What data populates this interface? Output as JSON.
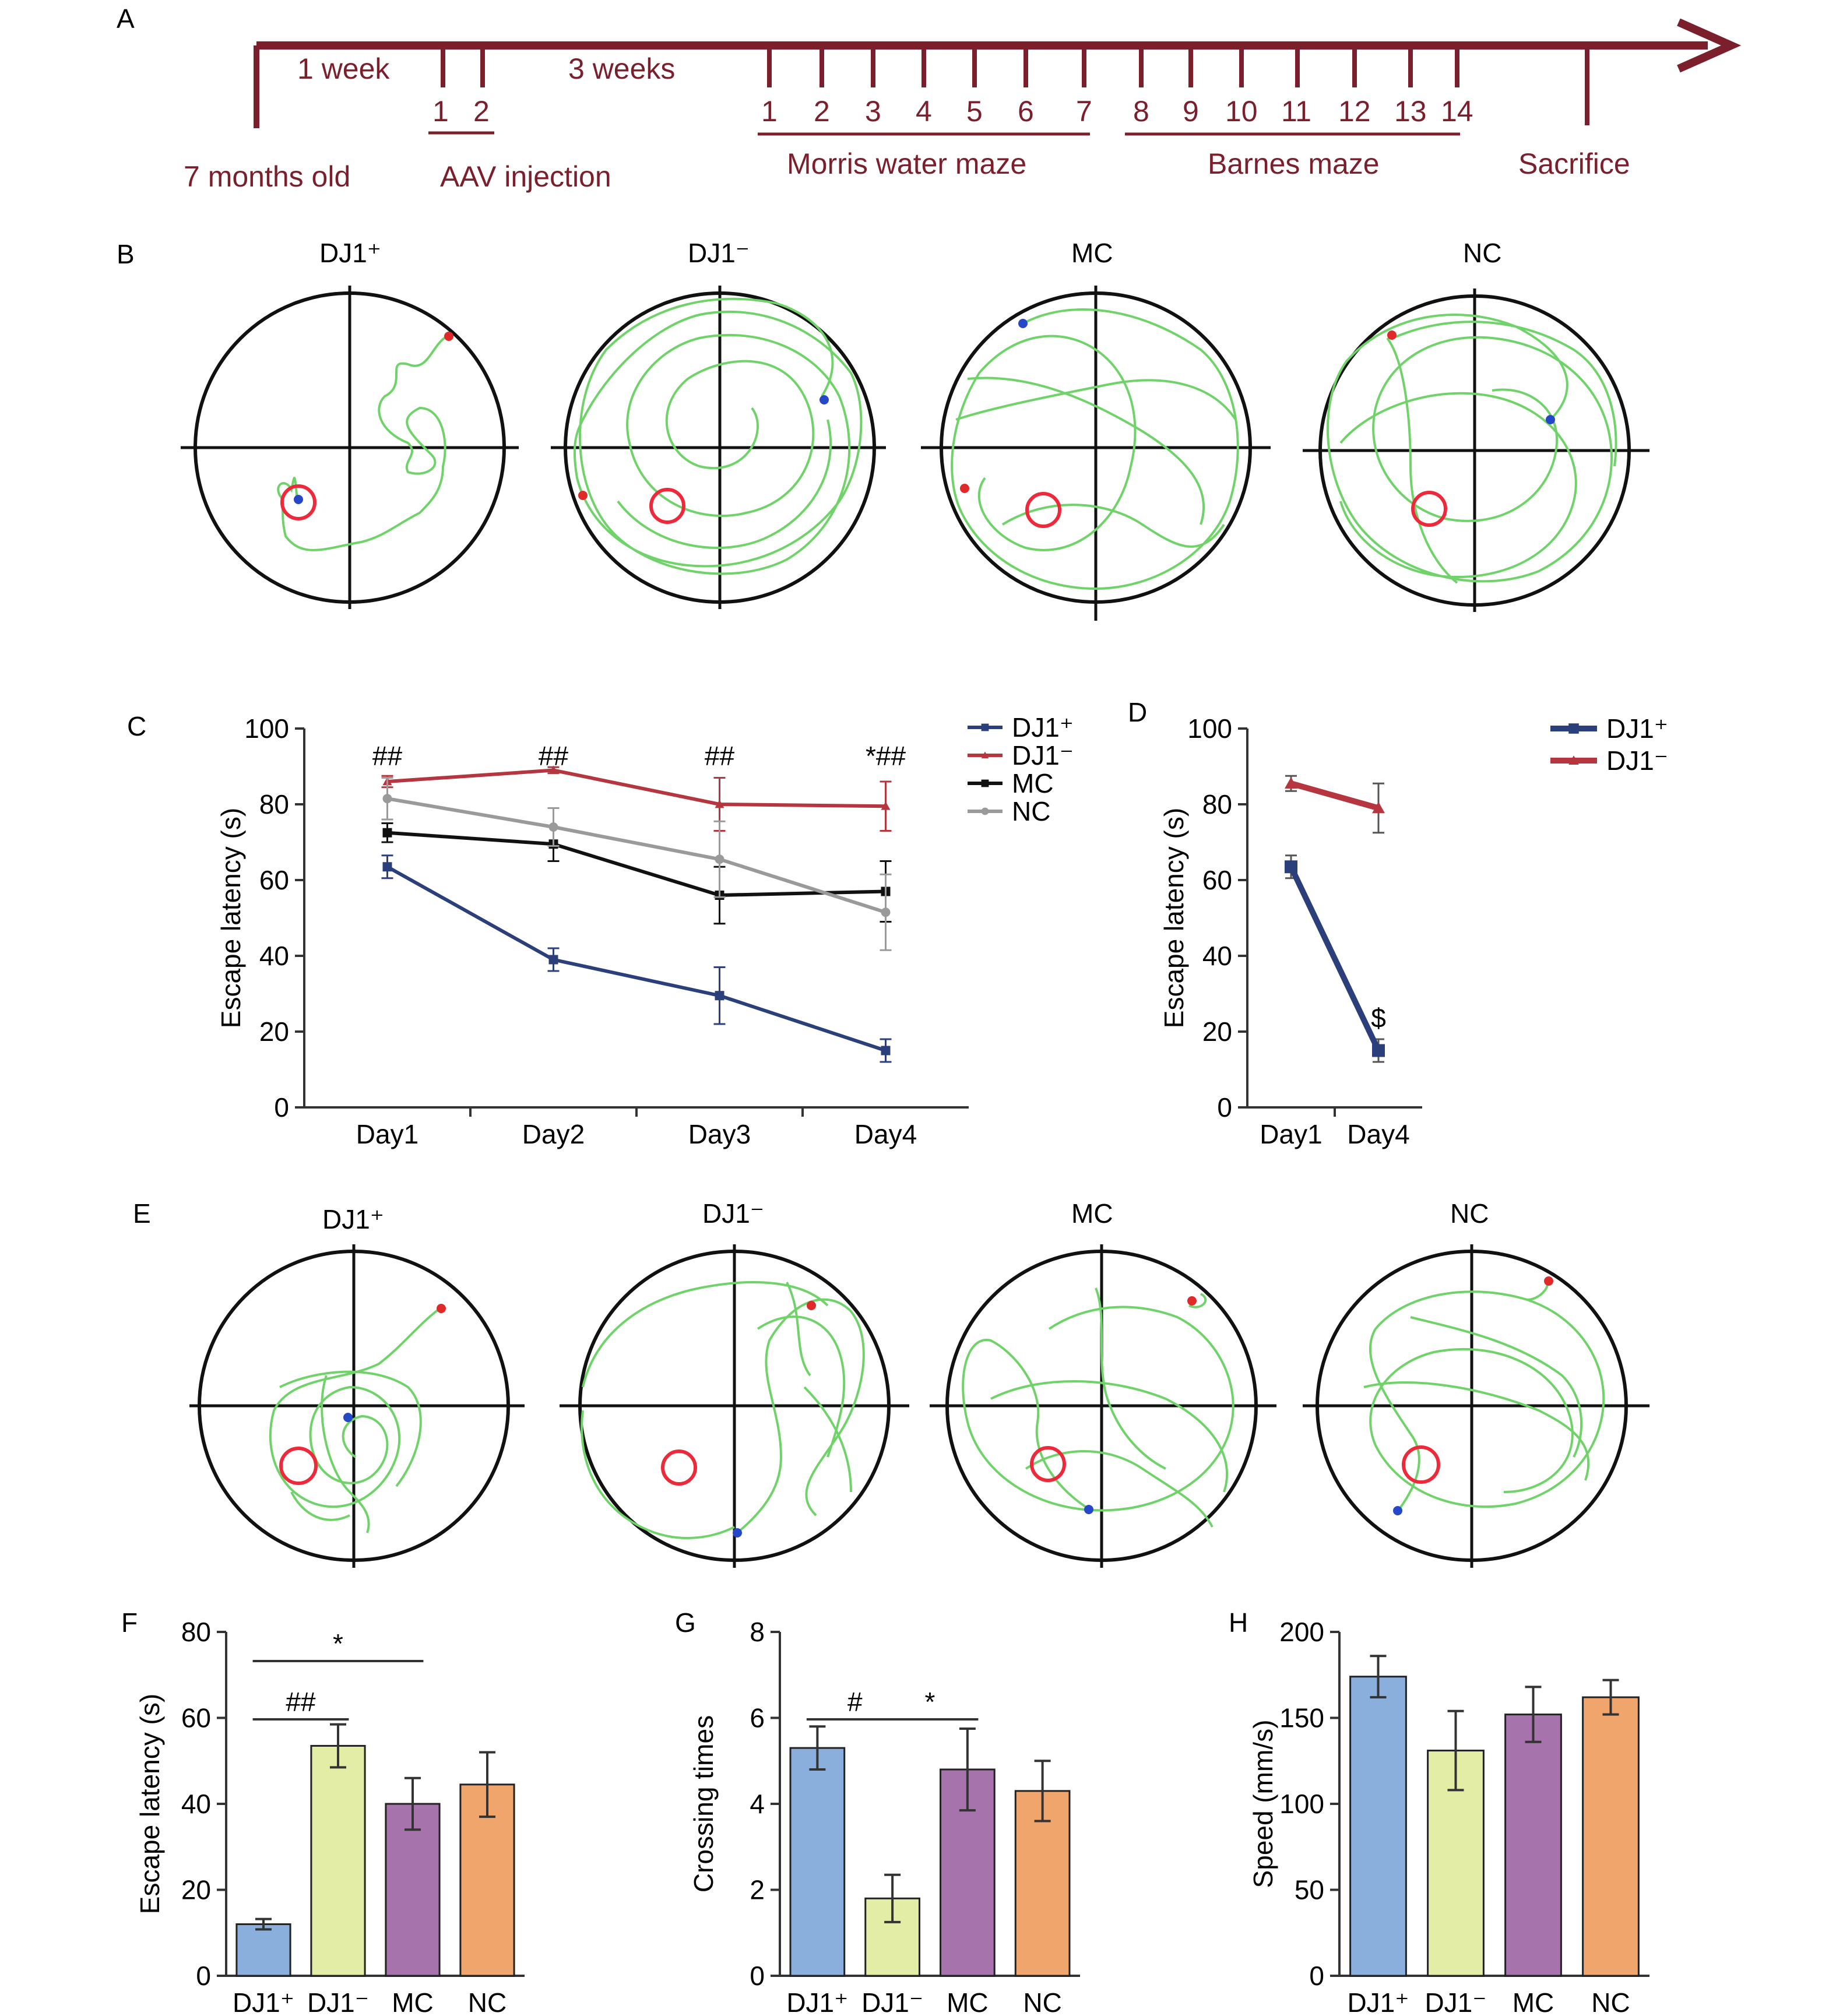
{
  "panels": {
    "A": "A",
    "B": "B",
    "C": "C",
    "D": "D",
    "E": "E",
    "F": "F",
    "G": "G",
    "H": "H"
  },
  "timeline": {
    "color": "#7a1f2b",
    "label_1week": "1 week",
    "label_3weeks": "3 weeks",
    "injection_days": [
      "1",
      "2"
    ],
    "mwm_days": [
      "1",
      "2",
      "3",
      "4",
      "5",
      "6",
      "7"
    ],
    "barnes_days": [
      "8",
      "9",
      "10",
      "11",
      "12",
      "13",
      "14"
    ],
    "age": "7 months old",
    "aav": "AAV injection",
    "mwm": "Morris water maze",
    "barnes": "Barnes maze",
    "sacrifice": "Sacrifice"
  },
  "groups": [
    "DJ1⁺",
    "DJ1⁻",
    "MC",
    "NC"
  ],
  "colors": {
    "dj1plus": "#2b3f7a",
    "dj1minus": "#b5363e",
    "mc": "#111111",
    "nc": "#9a9a9a",
    "bar_dj1plus": "#8aafdc",
    "bar_dj1minus": "#e4eda6",
    "bar_mc": "#a773ac",
    "bar_nc": "#f0a56c"
  },
  "chart_data": [
    {
      "panel": "C",
      "type": "line",
      "categories": [
        "Day1",
        "Day2",
        "Day3",
        "Day4"
      ],
      "ylabel": "Escape latency (s)",
      "ylim": [
        0,
        100
      ],
      "yticks": [
        "0",
        "20",
        "40",
        "60",
        "80",
        "100"
      ],
      "legend": "top-right",
      "series": [
        {
          "name": "DJ1⁺",
          "values": [
            63.5,
            39,
            29.5,
            15
          ],
          "errors": [
            3,
            3,
            7.5,
            3
          ]
        },
        {
          "name": "DJ1⁻",
          "values": [
            86,
            89,
            80,
            79.5
          ],
          "errors": [
            1.5,
            0.8,
            7,
            6.5
          ]
        },
        {
          "name": "MC",
          "values": [
            72.5,
            69.5,
            56,
            57
          ],
          "errors": [
            2.5,
            4.5,
            7.5,
            8
          ]
        },
        {
          "name": "NC",
          "values": [
            81.5,
            74,
            65.5,
            51.5
          ],
          "errors": [
            5.5,
            5,
            10,
            10
          ]
        }
      ],
      "annotations": [
        "##",
        "##",
        "##",
        "*##"
      ]
    },
    {
      "panel": "D",
      "type": "line",
      "categories": [
        "Day1",
        "Day4"
      ],
      "ylabel": "Escape latency (s)",
      "ylim": [
        0,
        100
      ],
      "yticks": [
        "0",
        "20",
        "40",
        "60",
        "80",
        "100"
      ],
      "legend": "top-right",
      "series": [
        {
          "name": "DJ1⁺",
          "values": [
            63.5,
            15
          ],
          "errors": [
            3,
            3
          ]
        },
        {
          "name": "DJ1⁻",
          "values": [
            85.5,
            79
          ],
          "errors": [
            2,
            6.5
          ]
        }
      ],
      "annotations": [
        "$"
      ]
    },
    {
      "panel": "F",
      "type": "bar",
      "categories": [
        "DJ1⁺",
        "DJ1⁻",
        "MC",
        "NC"
      ],
      "values": [
        12,
        53.5,
        40,
        44.5
      ],
      "errors": [
        1.2,
        5,
        6,
        7.5
      ],
      "ylabel": "Escape latency (s)",
      "ylim": [
        0,
        80
      ],
      "yticks": [
        "0",
        "20",
        "40",
        "60",
        "80"
      ],
      "significance": [
        {
          "from": 0,
          "to": 1,
          "label": "##"
        },
        {
          "from": 0,
          "to": 2,
          "label": "*"
        }
      ]
    },
    {
      "panel": "G",
      "type": "bar",
      "categories": [
        "DJ1⁺",
        "DJ1⁻",
        "MC",
        "NC"
      ],
      "values": [
        5.3,
        1.8,
        4.8,
        4.3
      ],
      "errors": [
        0.5,
        0.55,
        0.95,
        0.7
      ],
      "ylabel": "Crossing times",
      "ylim": [
        0,
        8
      ],
      "yticks": [
        "0",
        "2",
        "4",
        "6",
        "8"
      ],
      "significance": [
        {
          "from": 0,
          "to": 1,
          "label": "#"
        },
        {
          "from": 1,
          "to": 2,
          "label": "*"
        }
      ]
    },
    {
      "panel": "H",
      "type": "bar",
      "categories": [
        "DJ1⁺",
        "DJ1⁻",
        "MC",
        "NC"
      ],
      "values": [
        174,
        131,
        152,
        162
      ],
      "errors": [
        12,
        23,
        16,
        10
      ],
      "ylabel": "Speed (mm/s)",
      "ylim": [
        0,
        200
      ],
      "yticks": [
        "0",
        "50",
        "100",
        "150",
        "200"
      ],
      "significance": []
    }
  ]
}
